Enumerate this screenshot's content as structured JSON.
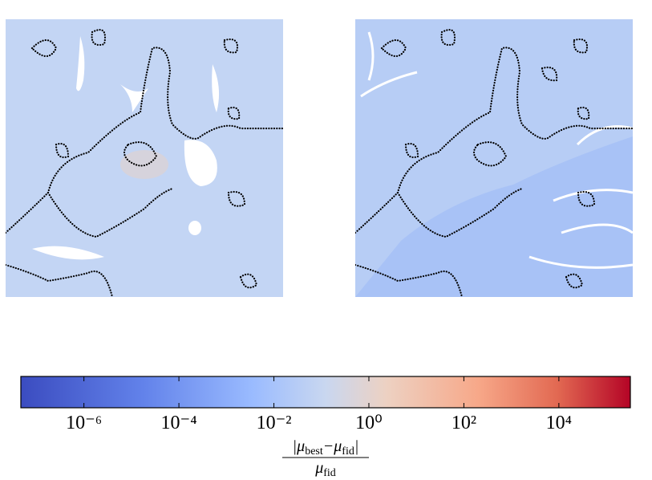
{
  "chart_data": {
    "type": "colorbar",
    "log": true,
    "lim": [
      4.7e-08,
      320000.0
    ],
    "ticks": [
      {
        "value": 1e-06,
        "label": "10⁻⁶"
      },
      {
        "value": 0.0001,
        "label": "10⁻⁴"
      },
      {
        "value": 0.01,
        "label": "10⁻²"
      },
      {
        "value": 1,
        "label": "10⁰"
      },
      {
        "value": 100,
        "label": "10²"
      },
      {
        "value": 10000,
        "label": "10⁴"
      }
    ],
    "label_numerator": [
      "|μ",
      "best",
      "−μ",
      "fid",
      "|"
    ],
    "label_denominator": [
      "μ",
      "fid"
    ]
  }
}
